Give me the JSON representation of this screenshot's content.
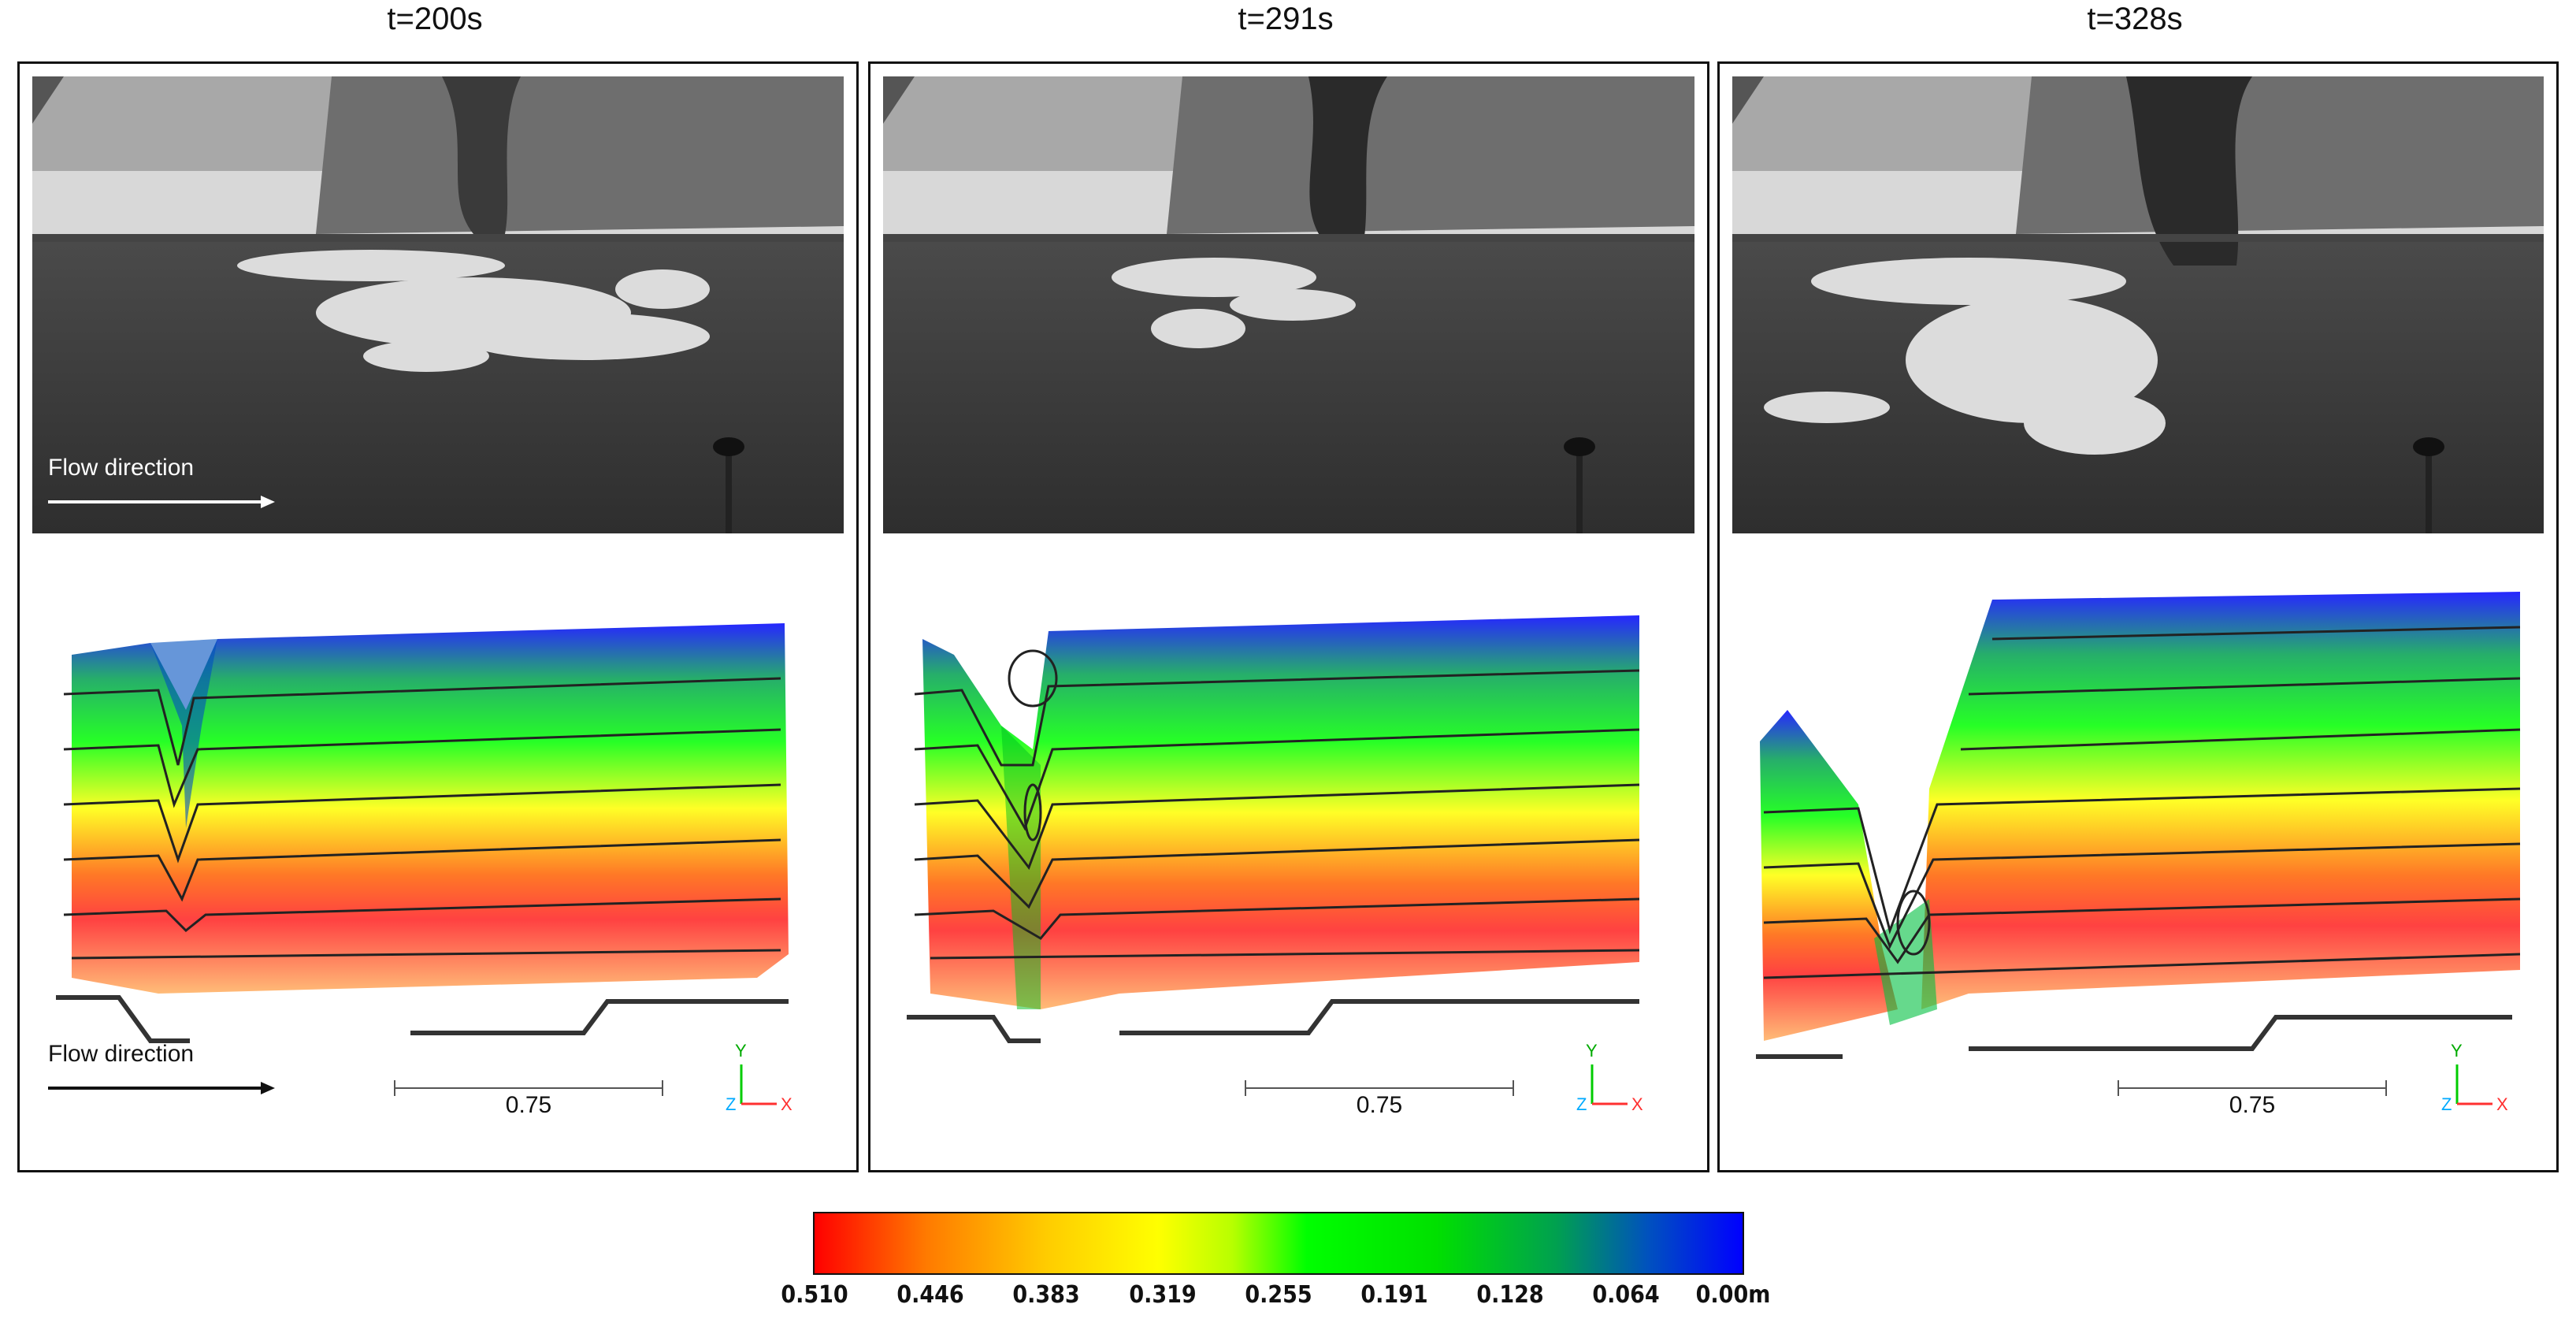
{
  "panels": [
    {
      "title": "t=200s",
      "scale": "0.75",
      "flow_photo": "Flow direction",
      "flow_cloud": "Flow direction"
    },
    {
      "title": "t=291s",
      "scale": "0.75"
    },
    {
      "title": "t=328s",
      "scale": "0.75"
    }
  ],
  "axis_labels": {
    "y": "Y",
    "z": "Z",
    "x": "X"
  },
  "colorbar": {
    "ticks": [
      "0.510",
      "0.446",
      "0.383",
      "0.319",
      "0.255",
      "0.191",
      "0.128",
      "0.064",
      "0.00m"
    ],
    "colors": [
      "#ff0000",
      "#ffff00",
      "#00ff00",
      "#0000ff"
    ]
  }
}
